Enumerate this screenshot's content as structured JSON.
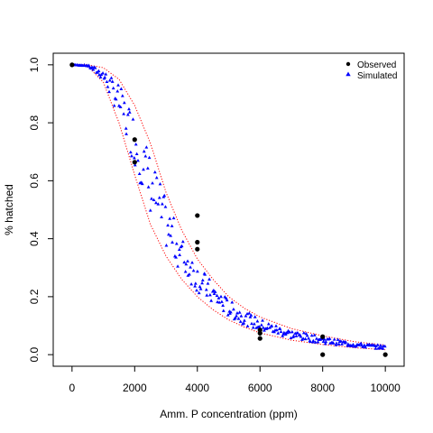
{
  "chart_data": {
    "type": "scatter",
    "xlabel": "Amm. P concentration (ppm)",
    "ylabel": "% hatched",
    "xlim": [
      -600,
      10600
    ],
    "ylim": [
      -0.04,
      1.04
    ],
    "x_ticks": [
      "0",
      "2000",
      "4000",
      "6000",
      "8000",
      "10000"
    ],
    "y_ticks": [
      "0.0",
      "0.2",
      "0.4",
      "0.6",
      "0.8",
      "1.0"
    ],
    "legend": {
      "position": "top-right",
      "entries": [
        {
          "label": "Observed",
          "marker": "dot",
          "color": "#000000"
        },
        {
          "label": "Simulated",
          "marker": "triangle",
          "color": "#0000ff"
        }
      ]
    },
    "observed": {
      "name": "Observed",
      "color": "#000000",
      "points": [
        [
          0,
          1.0
        ],
        [
          2000,
          0.742
        ],
        [
          2000,
          0.664
        ],
        [
          4000,
          0.48
        ],
        [
          4000,
          0.388
        ],
        [
          4000,
          0.364
        ],
        [
          6000,
          0.085
        ],
        [
          6000,
          0.074
        ],
        [
          6000,
          0.056
        ],
        [
          8000,
          0.062
        ],
        [
          8000,
          0.0
        ],
        [
          10000,
          0.0
        ]
      ]
    },
    "simulated": {
      "name": "Simulated",
      "color": "#0000ff",
      "n_points": 300,
      "x_range": [
        0,
        10000
      ],
      "model_points": [
        [
          0,
          1.0
        ],
        [
          500,
          0.997
        ],
        [
          1000,
          0.97
        ],
        [
          1500,
          0.89
        ],
        [
          2000,
          0.75
        ],
        [
          2500,
          0.6
        ],
        [
          3000,
          0.46
        ],
        [
          3500,
          0.35
        ],
        [
          4000,
          0.27
        ],
        [
          4500,
          0.21
        ],
        [
          5000,
          0.17
        ],
        [
          5500,
          0.14
        ],
        [
          6000,
          0.11
        ],
        [
          7000,
          0.075
        ],
        [
          8000,
          0.05
        ],
        [
          9000,
          0.035
        ],
        [
          10000,
          0.025
        ]
      ]
    },
    "bounds": {
      "color": "#ff0000",
      "style": "dotted",
      "upper": [
        [
          0,
          1.0
        ],
        [
          500,
          1.0
        ],
        [
          1000,
          0.99
        ],
        [
          1500,
          0.95
        ],
        [
          2000,
          0.86
        ],
        [
          2500,
          0.73
        ],
        [
          3000,
          0.56
        ],
        [
          3500,
          0.43
        ],
        [
          4000,
          0.33
        ],
        [
          4500,
          0.26
        ],
        [
          5000,
          0.2
        ],
        [
          5500,
          0.16
        ],
        [
          6000,
          0.13
        ],
        [
          7000,
          0.09
        ],
        [
          8000,
          0.065
        ],
        [
          9000,
          0.045
        ],
        [
          10000,
          0.033
        ]
      ],
      "lower": [
        [
          0,
          1.0
        ],
        [
          500,
          0.995
        ],
        [
          1000,
          0.94
        ],
        [
          1500,
          0.8
        ],
        [
          2000,
          0.62
        ],
        [
          2500,
          0.45
        ],
        [
          3000,
          0.34
        ],
        [
          3500,
          0.26
        ],
        [
          4000,
          0.2
        ],
        [
          4500,
          0.155
        ],
        [
          5000,
          0.12
        ],
        [
          5500,
          0.095
        ],
        [
          6000,
          0.075
        ],
        [
          7000,
          0.05
        ],
        [
          8000,
          0.035
        ],
        [
          9000,
          0.024
        ],
        [
          10000,
          0.017
        ]
      ]
    }
  }
}
